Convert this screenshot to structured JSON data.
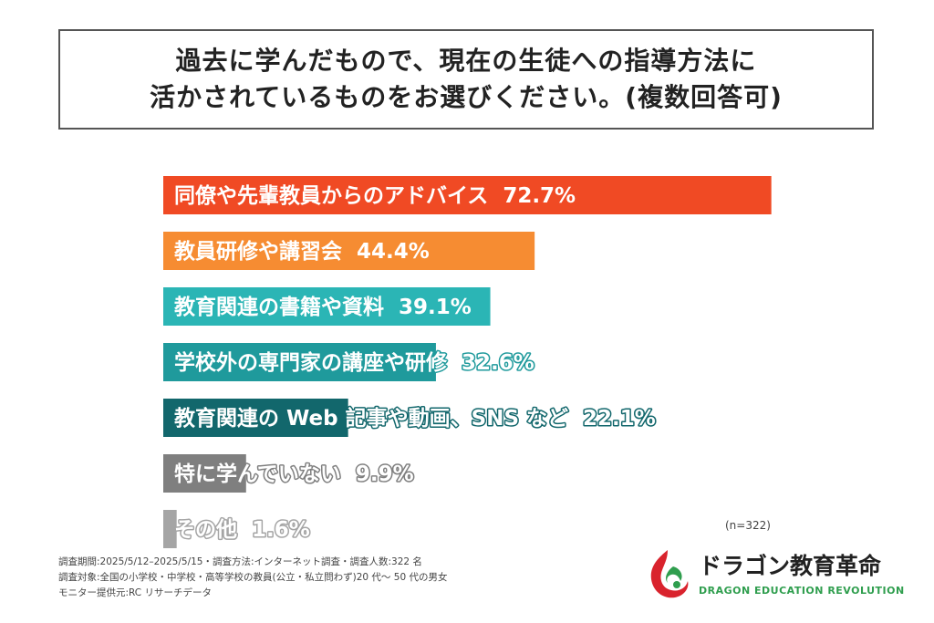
{
  "title": {
    "line1": "過去に学んだもので、現在の生徒への指導方法に",
    "line2": "活かされているものをお選びください。(複数回答可)"
  },
  "chart_data": {
    "type": "bar",
    "orientation": "horizontal",
    "title": "過去に学んだもので、現在の生徒への指導方法に活かされているものをお選びください。(複数回答可)",
    "unit": "%",
    "xlim": [
      0,
      100
    ],
    "grid": false,
    "legend": "none",
    "categories": [
      "同僚や先輩教員からのアドバイス",
      "教員研修や講習会",
      "教育関連の書籍や資料",
      "学校外の専門家の講座や研修",
      "教育関連の Web 記事や動画、SNS など",
      "特に学んでいない",
      "その他"
    ],
    "values": [
      72.7,
      44.4,
      39.1,
      32.6,
      22.1,
      9.9,
      1.6
    ],
    "value_labels": [
      "72.7%",
      "44.4%",
      "39.1%",
      "32.6%",
      "22.1%",
      "9.9%",
      "1.6%"
    ],
    "colors": [
      "#f04a24",
      "#f68c32",
      "#2bb5b5",
      "#1f9a9c",
      "#12676c",
      "#7f7f7f",
      "#a5a5a5"
    ]
  },
  "sample_note": "(n=322)",
  "footnotes": [
    "調査期間:2025/5/12–2025/5/15・調査方法:インターネット調査・調査人数:322 名",
    "調査対象:全国の小学校・中学校・高等学校の教員(公立・私立問わず)20 代〜 50 代の男女",
    "モニター提供元:RC リサーチデータ"
  ],
  "logo": {
    "name_jp": "ドラゴン教育革命",
    "name_en": "DRAGON EDUCATION REVOLUTION",
    "icon": "dragon-logo-icon"
  }
}
